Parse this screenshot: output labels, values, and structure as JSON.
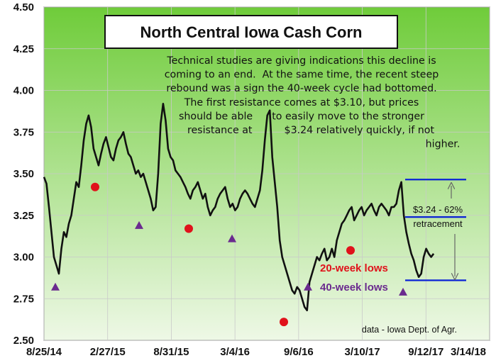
{
  "chart_data": {
    "type": "line",
    "title": "North Central Iowa Cash Corn",
    "ylim": [
      2.5,
      4.5
    ],
    "y_ticks": [
      "2.50",
      "2.75",
      "3.00",
      "3.25",
      "3.50",
      "3.75",
      "4.00",
      "4.25",
      "4.50"
    ],
    "x_ticks": [
      "8/25/14",
      "2/27/15",
      "8/31/15",
      "3/4/16",
      "9/6/16",
      "3/10/17",
      "9/12/17",
      "3/14/18"
    ],
    "grid": true,
    "background_gradient": [
      "#6fcc3a",
      "#eef8e6"
    ],
    "series": [
      {
        "color": "#111111",
        "values": [
          3.48,
          3.44,
          3.3,
          3.15,
          3.0,
          2.95,
          2.9,
          3.05,
          3.15,
          3.12,
          3.2,
          3.25,
          3.35,
          3.45,
          3.42,
          3.55,
          3.7,
          3.8,
          3.85,
          3.78,
          3.65,
          3.6,
          3.55,
          3.62,
          3.68,
          3.72,
          3.66,
          3.6,
          3.58,
          3.65,
          3.7,
          3.72,
          3.75,
          3.68,
          3.62,
          3.6,
          3.55,
          3.5,
          3.52,
          3.48,
          3.5,
          3.45,
          3.4,
          3.35,
          3.28,
          3.3,
          3.5,
          3.8,
          3.92,
          3.82,
          3.65,
          3.6,
          3.58,
          3.52,
          3.5,
          3.48,
          3.45,
          3.42,
          3.38,
          3.35,
          3.4,
          3.42,
          3.45,
          3.4,
          3.35,
          3.38,
          3.3,
          3.25,
          3.28,
          3.3,
          3.35,
          3.38,
          3.4,
          3.42,
          3.35,
          3.3,
          3.32,
          3.28,
          3.3,
          3.35,
          3.38,
          3.4,
          3.38,
          3.35,
          3.32,
          3.3,
          3.35,
          3.4,
          3.52,
          3.7,
          3.85,
          3.88,
          3.6,
          3.45,
          3.3,
          3.1,
          3.0,
          2.95,
          2.9,
          2.85,
          2.8,
          2.78,
          2.82,
          2.8,
          2.75,
          2.7,
          2.68,
          2.85,
          2.9,
          2.95,
          3.0,
          2.98,
          3.02,
          3.05,
          2.98,
          3.0,
          3.05,
          3.0,
          3.1,
          3.15,
          3.2,
          3.22,
          3.25,
          3.28,
          3.3,
          3.22,
          3.25,
          3.28,
          3.3,
          3.25,
          3.28,
          3.3,
          3.32,
          3.28,
          3.25,
          3.3,
          3.32,
          3.3,
          3.28,
          3.25,
          3.3,
          3.3,
          3.32,
          3.4,
          3.45,
          3.25,
          3.15,
          3.08,
          3.02,
          2.98,
          2.92,
          2.88,
          2.9,
          3.0,
          3.05,
          3.02,
          3.0,
          3.02
        ]
      }
    ],
    "markers": {
      "red_circles": [
        3.42,
        3.17,
        2.61,
        3.04
      ],
      "purple_triangles": [
        2.82,
        3.19,
        3.11,
        2.82,
        2.79
      ]
    },
    "annotation_lines": [
      "Technical studies are giving indications this decline is",
      "coming to an end.  At the same time, the recent steep",
      "rebound was a sign the 40-week cycle had bottomed.",
      "The first resistance comes at $3.10, but prices",
      "should be able      to easily move to the stronger",
      "resistance at          $3.24 relatively quickly, if not",
      "higher."
    ],
    "retracement_levels": [
      3.465,
      3.24,
      2.86
    ],
    "retracement_label_1": "$3.24 - 62%",
    "retracement_label_2": "retracement",
    "legend_red": "20-week lows",
    "legend_purple": "40-week lows",
    "source": "data - Iowa Dept. of Agr.",
    "colors": {
      "red": "#e0121b",
      "purple": "#6a2a8e",
      "blue": "#0a22d6"
    }
  }
}
